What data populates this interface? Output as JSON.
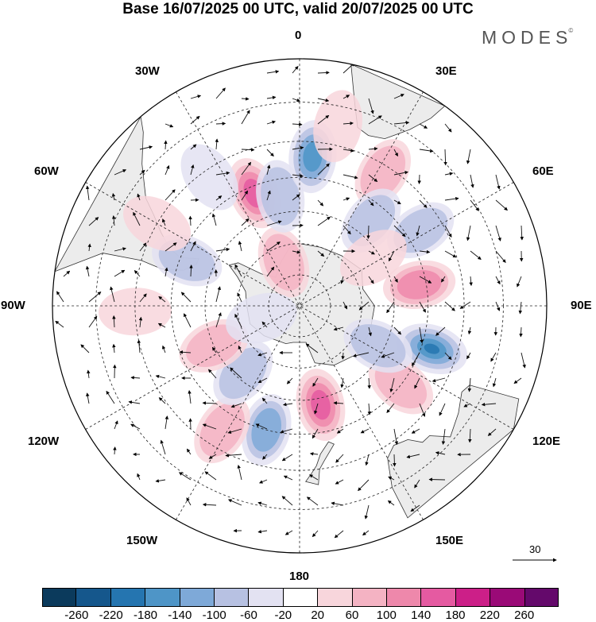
{
  "title": "Base 16/07/2025 00 UTC, valid 20/07/2025 00 UTC",
  "brand": "MODES",
  "brand_mark": "©",
  "map": {
    "projection": "south polar stereographic",
    "meridian_labels": [
      "0",
      "30E",
      "60E",
      "90E",
      "120E",
      "150E",
      "180",
      "150W",
      "120W",
      "90W",
      "60W",
      "30W"
    ],
    "reference_vector": "30",
    "fill_colors": {
      "land": "#ececec",
      "coast": "#333333",
      "grid": "#222222"
    }
  },
  "colorbar": {
    "colors": [
      "#0b3a5c",
      "#15578c",
      "#2575b0",
      "#4e95c7",
      "#7ea9d8",
      "#b7c1e2",
      "#e3e2f2",
      "#ffffff",
      "#f8d6dc",
      "#f4b3c3",
      "#ee88ab",
      "#e55aa1",
      "#cc1f88",
      "#9a0a77",
      "#64096b"
    ],
    "tick_labels": [
      "-260",
      "-220",
      "-180",
      "-140",
      "-100",
      "-60",
      "-20",
      "20",
      "60",
      "100",
      "140",
      "180",
      "220",
      "260"
    ]
  },
  "anomalies": [
    {
      "lon": 340,
      "lat": -75,
      "value": 1,
      "strength": 2
    },
    {
      "lon": 338,
      "lat": -52,
      "value": 1,
      "strength": 4
    },
    {
      "lon": 350,
      "lat": -55,
      "value": -1,
      "strength": 2
    },
    {
      "lon": 5,
      "lat": -44,
      "value": -1,
      "strength": 4
    },
    {
      "lon": 12,
      "lat": -35,
      "value": 1,
      "strength": 1
    },
    {
      "lon": 32,
      "lat": -42,
      "value": 1,
      "strength": 2
    },
    {
      "lon": 40,
      "lat": -55,
      "value": -1,
      "strength": 2
    },
    {
      "lon": 58,
      "lat": -46,
      "value": -1,
      "strength": 2
    },
    {
      "lon": 57,
      "lat": -62,
      "value": 1,
      "strength": 1
    },
    {
      "lon": 80,
      "lat": -52,
      "value": 1,
      "strength": 3
    },
    {
      "lon": 108,
      "lat": -47,
      "value": -1,
      "strength": 5
    },
    {
      "lon": 128,
      "lat": -50,
      "value": 1,
      "strength": 2
    },
    {
      "lon": 117,
      "lat": -62,
      "value": -1,
      "strength": 2
    },
    {
      "lon": 168,
      "lat": -58,
      "value": 1,
      "strength": 4
    },
    {
      "lon": 195,
      "lat": -50,
      "value": -1,
      "strength": 3
    },
    {
      "lon": 212,
      "lat": -45,
      "value": 1,
      "strength": 2
    },
    {
      "lon": 220,
      "lat": -62,
      "value": -1,
      "strength": 2
    },
    {
      "lon": 245,
      "lat": -60,
      "value": 1,
      "strength": 2
    },
    {
      "lon": 252,
      "lat": -77,
      "value": -1,
      "strength": 1
    },
    {
      "lon": 268,
      "lat": -40,
      "value": 1,
      "strength": 1
    },
    {
      "lon": 292,
      "lat": -52,
      "value": -1,
      "strength": 2
    },
    {
      "lon": 325,
      "lat": -42,
      "value": -1,
      "strength": 1
    },
    {
      "lon": 300,
      "lat": -40,
      "value": 1,
      "strength": 1
    }
  ]
}
